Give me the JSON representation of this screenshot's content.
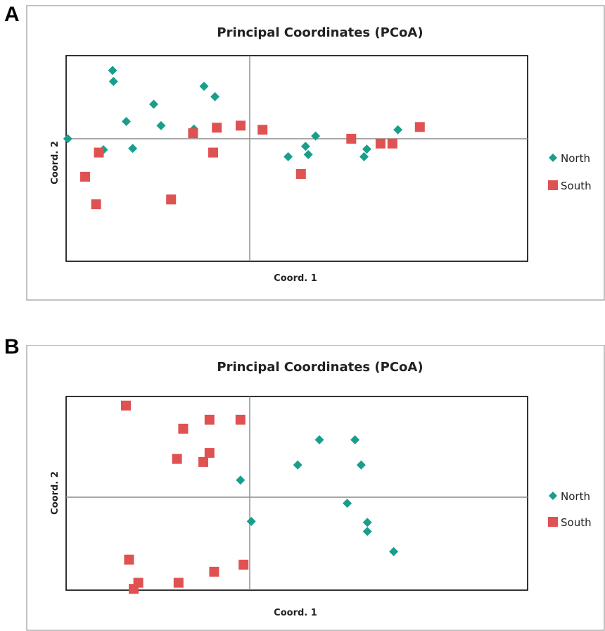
{
  "panels": [
    {
      "letter": "A"
    },
    {
      "letter": "B"
    }
  ],
  "colors": {
    "north": "#1a9e8c",
    "south": "#e05252",
    "frame": "#999999",
    "axis_line": "#8c8c8c"
  },
  "chart_data": [
    {
      "type": "scatter",
      "title": "Principal Coordinates (PCoA)",
      "xlabel": "Coord. 1",
      "ylabel": "Coord. 2",
      "xlim": [
        -1,
        1
      ],
      "ylim": [
        -1,
        1
      ],
      "grid": false,
      "legend_position": "right",
      "series": [
        {
          "name": "North",
          "marker": "diamond",
          "points": [
            [
              -0.995,
              0.0
            ],
            [
              -0.745,
              0.83
            ],
            [
              -0.525,
              0.5
            ],
            [
              -0.75,
              0.99
            ],
            [
              -0.485,
              0.19
            ],
            [
              -0.8,
              -0.16
            ],
            [
              -0.25,
              0.76
            ],
            [
              -0.64,
              -0.14
            ],
            [
              -0.675,
              0.25
            ],
            [
              -0.19,
              0.61
            ],
            [
              -0.305,
              0.14
            ],
            [
              0.305,
              -0.11
            ],
            [
              0.36,
              0.04
            ],
            [
              0.21,
              -0.26
            ],
            [
              0.32,
              -0.23
            ],
            [
              0.625,
              -0.26
            ],
            [
              0.64,
              -0.15
            ],
            [
              0.81,
              0.13
            ]
          ]
        },
        {
          "name": "South",
          "marker": "square",
          "points": [
            [
              -0.825,
              -0.2
            ],
            [
              -0.9,
              -0.55
            ],
            [
              -0.84,
              -0.95
            ],
            [
              -0.43,
              -0.88
            ],
            [
              -0.31,
              0.08
            ],
            [
              -0.18,
              0.16
            ],
            [
              -0.2,
              -0.2
            ],
            [
              0.07,
              0.13
            ],
            [
              -0.05,
              0.19
            ],
            [
              0.28,
              -0.51
            ],
            [
              0.555,
              0.0
            ],
            [
              0.93,
              0.17
            ],
            [
              0.715,
              -0.07
            ],
            [
              0.78,
              -0.07
            ]
          ]
        }
      ]
    },
    {
      "type": "scatter",
      "title": "Principal Coordinates (PCoA)",
      "xlabel": "Coord. 1",
      "ylabel": "Coord. 2",
      "xlim": [
        -1,
        1
      ],
      "ylim": [
        -1,
        1
      ],
      "grid": false,
      "legend_position": "right",
      "series": [
        {
          "name": "North",
          "marker": "diamond",
          "points": [
            [
              -0.06,
              0.17
            ],
            [
              0.01,
              -0.24
            ],
            [
              0.31,
              0.32
            ],
            [
              0.45,
              0.57
            ],
            [
              0.68,
              0.57
            ],
            [
              0.72,
              0.32
            ],
            [
              0.63,
              -0.06
            ],
            [
              0.76,
              -0.25
            ],
            [
              0.76,
              -0.34
            ],
            [
              0.93,
              -0.54
            ]
          ]
        },
        {
          "name": "South",
          "marker": "square",
          "points": [
            [
              -0.8,
              0.91
            ],
            [
              -0.43,
              0.68
            ],
            [
              -0.47,
              0.38
            ],
            [
              -0.26,
              0.44
            ],
            [
              -0.06,
              0.77
            ],
            [
              -0.26,
              0.77
            ],
            [
              -0.3,
              0.35
            ],
            [
              -0.72,
              -0.85
            ],
            [
              -0.75,
              -0.91
            ],
            [
              -0.78,
              -0.62
            ],
            [
              -0.46,
              -0.85
            ],
            [
              -0.04,
              -0.67
            ],
            [
              -0.23,
              -0.74
            ]
          ]
        }
      ]
    }
  ]
}
